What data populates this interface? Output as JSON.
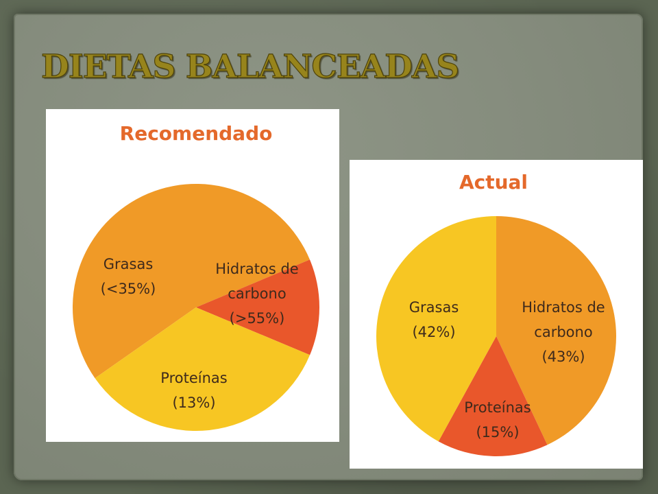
{
  "page": {
    "title": "DIETAS BALANCEADAS"
  },
  "colors": {
    "grasas": "#f7c623",
    "hidratos": "#f09a27",
    "proteinas": "#e9572b",
    "chart_title": "#e4692b",
    "page_title": "#97841c"
  },
  "chart_data": [
    {
      "type": "pie",
      "title": "Recomendado",
      "slices": [
        {
          "key": "grasas",
          "label_line1": "Grasas",
          "label_line2": "(<35%)",
          "value": 35
        },
        {
          "key": "hidratos",
          "label_line1": "Hidratos de",
          "label_line1b": "carbono",
          "label_line2": "(>55%)",
          "value": 55
        },
        {
          "key": "proteinas",
          "label_line1": "Proteínas",
          "label_line2": "(13%)",
          "value": 13
        }
      ]
    },
    {
      "type": "pie",
      "title": "Actual",
      "slices": [
        {
          "key": "grasas",
          "label_line1": "Grasas",
          "label_line2": "(42%)",
          "value": 42
        },
        {
          "key": "hidratos",
          "label_line1": "Hidratos de",
          "label_line1b": "carbono",
          "label_line2": "(43%)",
          "value": 43
        },
        {
          "key": "proteinas",
          "label_line1": "Proteínas",
          "label_line2": "(15%)",
          "value": 15
        }
      ]
    }
  ]
}
